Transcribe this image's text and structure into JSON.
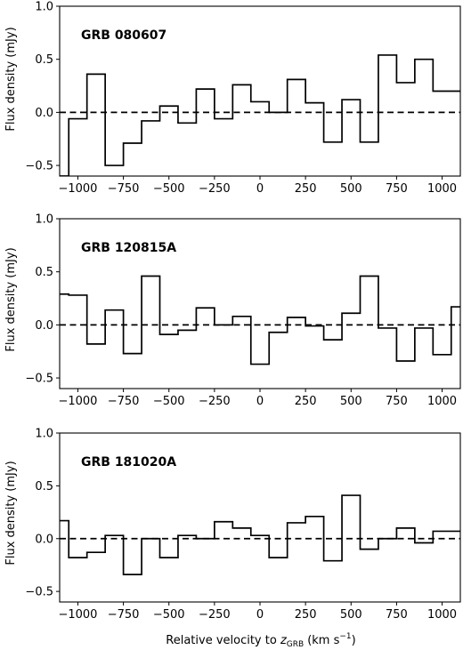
{
  "figure": {
    "ylabel": "Flux density (mJy)",
    "xlabel": "Relative velocity to",
    "xlabel_var": "z",
    "xlabel_sub": "GRB",
    "xlabel_unit": "(km s",
    "xlabel_unit_sup": "−1",
    "xlabel_close": ")"
  },
  "chart_data": [
    {
      "type": "line",
      "drawstyle": "steps-mid",
      "title": "GRB 080607",
      "xlim": [
        -1100,
        1100
      ],
      "ylim": [
        -0.6,
        1.0
      ],
      "xticks": [
        -1000,
        -750,
        -500,
        -250,
        0,
        250,
        500,
        750,
        1000
      ],
      "xtick_labels": [
        "−1000",
        "−750",
        "−500",
        "−250",
        "0",
        "250",
        "500",
        "750",
        "1000"
      ],
      "yticks": [
        -0.5,
        0.0,
        0.5,
        1.0
      ],
      "ytick_labels": [
        "−0.5",
        "0.0",
        "0.5",
        "1.0"
      ],
      "reference_line": 0.0,
      "x": [
        -1100,
        -1000,
        -900,
        -800,
        -700,
        -600,
        -500,
        -400,
        -300,
        -200,
        -100,
        0,
        100,
        200,
        300,
        400,
        500,
        600,
        700,
        800,
        900,
        1000,
        1100
      ],
      "y": [
        -0.6,
        -0.06,
        0.36,
        -0.5,
        -0.29,
        -0.08,
        0.06,
        -0.1,
        0.22,
        -0.06,
        0.26,
        0.1,
        0.0,
        0.31,
        0.09,
        -0.28,
        0.12,
        -0.28,
        0.54,
        0.28,
        0.5,
        0.2,
        0.2
      ]
    },
    {
      "type": "line",
      "drawstyle": "steps-mid",
      "title": "GRB 120815A",
      "xlim": [
        -1100,
        1100
      ],
      "ylim": [
        -0.6,
        1.0
      ],
      "xticks": [
        -1000,
        -750,
        -500,
        -250,
        0,
        250,
        500,
        750,
        1000
      ],
      "xtick_labels": [
        "−1000",
        "−750",
        "−500",
        "−250",
        "0",
        "250",
        "500",
        "750",
        "1000"
      ],
      "yticks": [
        -0.5,
        0.0,
        0.5,
        1.0
      ],
      "ytick_labels": [
        "−0.5",
        "0.0",
        "0.5",
        "1.0"
      ],
      "reference_line": 0.0,
      "x": [
        -1100,
        -1000,
        -900,
        -800,
        -700,
        -600,
        -500,
        -400,
        -300,
        -200,
        -100,
        0,
        100,
        200,
        300,
        400,
        500,
        600,
        700,
        800,
        900,
        1000,
        1100
      ],
      "y": [
        0.29,
        0.28,
        -0.18,
        0.14,
        -0.27,
        0.46,
        -0.09,
        -0.05,
        0.16,
        0.0,
        0.08,
        -0.37,
        -0.07,
        0.07,
        -0.01,
        -0.14,
        0.11,
        0.46,
        -0.03,
        -0.34,
        -0.03,
        -0.28,
        0.17
      ]
    },
    {
      "type": "line",
      "drawstyle": "steps-mid",
      "title": "GRB 181020A",
      "xlim": [
        -1100,
        1100
      ],
      "ylim": [
        -0.6,
        1.0
      ],
      "xticks": [
        -1000,
        -750,
        -500,
        -250,
        0,
        250,
        500,
        750,
        1000
      ],
      "xtick_labels": [
        "−1000",
        "−750",
        "−500",
        "−250",
        "0",
        "250",
        "500",
        "750",
        "1000"
      ],
      "yticks": [
        -0.5,
        0.0,
        0.5,
        1.0
      ],
      "ytick_labels": [
        "−0.5",
        "0.0",
        "0.5",
        "1.0"
      ],
      "reference_line": 0.0,
      "x": [
        -1100,
        -1000,
        -900,
        -800,
        -700,
        -600,
        -500,
        -400,
        -300,
        -200,
        -100,
        0,
        100,
        200,
        300,
        400,
        500,
        600,
        700,
        800,
        900,
        1000,
        1100
      ],
      "y": [
        0.17,
        -0.18,
        -0.13,
        0.03,
        -0.34,
        0.0,
        -0.18,
        0.03,
        0.0,
        0.16,
        0.1,
        0.03,
        -0.18,
        0.15,
        0.21,
        -0.21,
        0.41,
        -0.1,
        0.0,
        0.1,
        -0.04,
        0.07,
        0.07
      ]
    }
  ]
}
